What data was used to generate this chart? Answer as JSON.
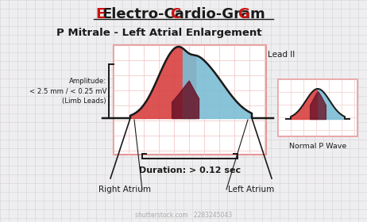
{
  "title_ecg_black": "lectro-",
  "title_ecg_full": "Electro-Cardio-Gram",
  "title_main": "P Mitrale - Left Atrial Enlargement",
  "lead_label": "Lead II",
  "normal_label": "Normal P Wave",
  "amplitude_text": "Amplitude:\n< 2.5 mm / < 0.25 mV\n(Limb Leads)",
  "right_atrium_label": "Right Atrium",
  "left_atrium_label": "Left Atrium",
  "duration_label": "Duration: > 0.12 sec",
  "bg_color": "#eeeef0",
  "grid_color": "#d8d0d0",
  "box_edge_color": "#e89898",
  "box_face_color": "#ffffff",
  "pink_grid_color": "#f0c0c0",
  "red_color": "#d94040",
  "blue_color": "#7bbdd4",
  "dark_red": "#6a1428",
  "black": "#1a1a1a",
  "title_red": "#cc1111",
  "watermark_color": "#aaaaaa",
  "watermark_text": "shutterstock.com · 2283245043"
}
